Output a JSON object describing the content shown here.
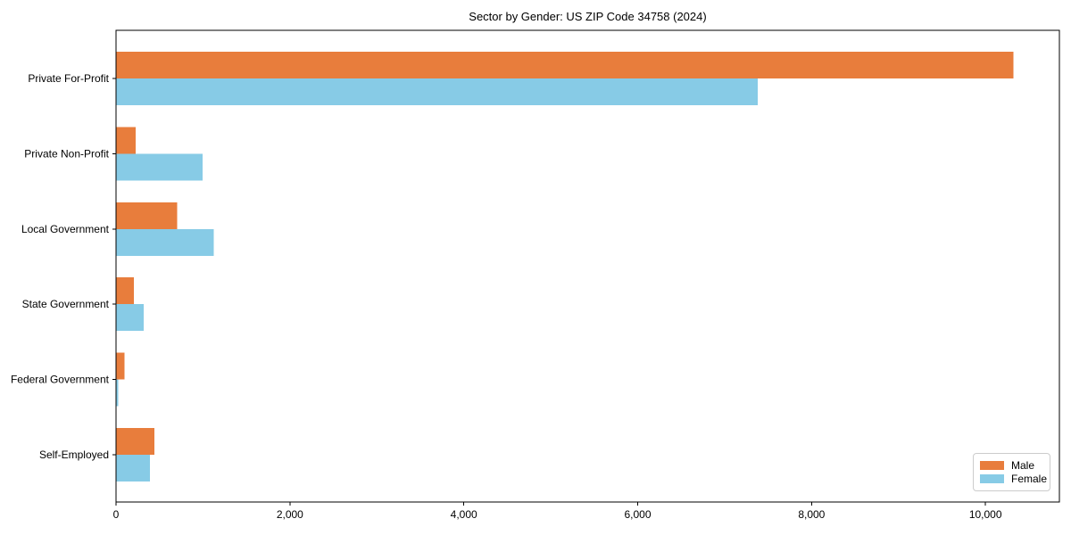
{
  "figure": {
    "background": "#ffffff",
    "plot_border_color": "#000000"
  },
  "chart_data": {
    "type": "bar",
    "orientation": "horizontal",
    "title": "Sector by Gender: US ZIP Code 34758 (2024)",
    "categories": [
      "Private For-Profit",
      "Private Non-Profit",
      "Local Government",
      "State Government",
      "Federal Government",
      "Self-Employed"
    ],
    "series": [
      {
        "name": "Male",
        "color": "#e87d3c",
        "values": [
          10320,
          225,
          705,
          205,
          95,
          440
        ]
      },
      {
        "name": "Female",
        "color": "#87cbe6",
        "values": [
          7380,
          995,
          1125,
          320,
          25,
          390
        ]
      }
    ],
    "xlabel": "",
    "ylabel": "",
    "xlim": [
      0,
      10850
    ],
    "x_ticks": [
      0,
      2000,
      4000,
      6000,
      8000,
      10000
    ],
    "x_tick_labels": [
      "0",
      "2,000",
      "4,000",
      "6,000",
      "8,000",
      "10,000"
    ],
    "grid": false,
    "legend": {
      "position": "lower right",
      "entries": [
        "Male",
        "Female"
      ]
    },
    "axis_color": "#000000",
    "text_color": "#000000"
  }
}
